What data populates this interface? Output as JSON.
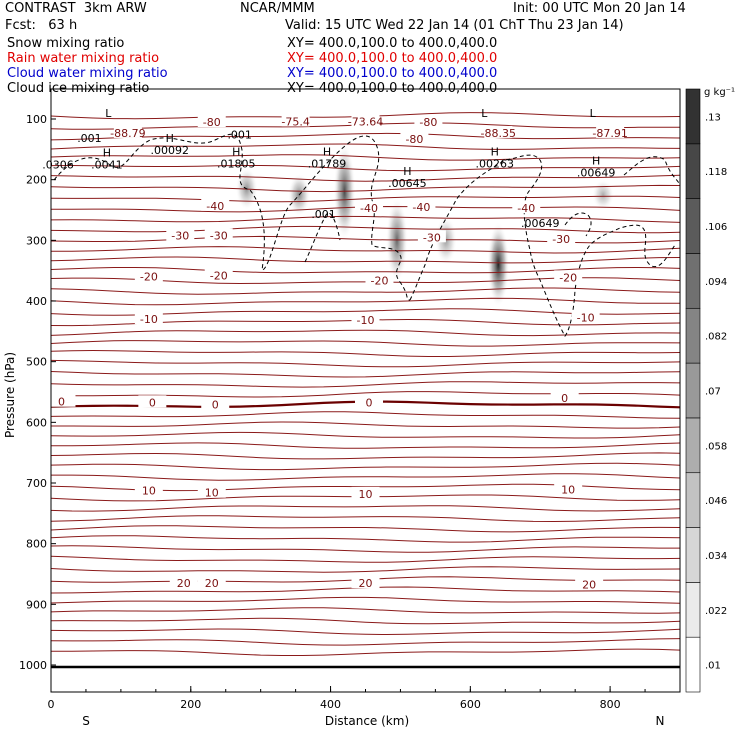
{
  "header": {
    "model": "CONTRAST  3km ARW",
    "org": "NCAR/MMM",
    "init": "Init: 00 UTC Mon 20 Jan 14",
    "fcst": "Fcst:   63 h",
    "valid": "Valid: 15 UTC Wed 22 Jan 14 (01 ChT Thu 23 Jan 14)",
    "fields": [
      {
        "label": "Snow mixing ratio",
        "color": "#000000",
        "xy": "XY= 400.0,100.0 to 400.0,400.0"
      },
      {
        "label": "Rain water mixing ratio",
        "color": "#e00000",
        "xy": "XY= 400.0,100.0 to 400.0,400.0"
      },
      {
        "label": "Cloud water mixing ratio",
        "color": "#0000cc",
        "xy": "XY= 400.0,100.0 to 400.0,400.0"
      },
      {
        "label": "Cloud ice mixing ratio",
        "color": "#000000",
        "xy": "XY= 400.0,100.0 to 400.0,400.0"
      }
    ]
  },
  "colorbar": {
    "unit": "g kg⁻¹",
    "levels": [
      ".01",
      ".022",
      ".034",
      ".046",
      ".058",
      ".07",
      ".082",
      ".094",
      ".106",
      ".118",
      ".13"
    ]
  },
  "chart_data": {
    "type": "cross-section",
    "xlabel": "Distance (km)",
    "ylabel": "Pressure (hPa)",
    "xlim": [
      0,
      900
    ],
    "ylim": [
      1050,
      30
    ],
    "xticks": [
      0,
      200,
      400,
      600,
      800
    ],
    "yticks": [
      100,
      200,
      300,
      400,
      500,
      600,
      700,
      800,
      900,
      1000
    ],
    "endpoints": {
      "left": "S",
      "right": "N"
    },
    "isotherms": [
      {
        "label": "-80",
        "p": 110
      },
      {
        "label": "-40",
        "p": 243
      },
      {
        "label": "-30",
        "p": 290
      },
      {
        "label": "-20",
        "p": 358
      },
      {
        "label": "-10",
        "p": 430
      },
      {
        "label": "0",
        "p": 567
      },
      {
        "label": "10",
        "p": 715
      },
      {
        "label": "20",
        "p": 865
      }
    ],
    "contour_labels": [
      {
        "text": "-80",
        "x": 230,
        "p": 105
      },
      {
        "text": "-80",
        "x": 540,
        "p": 105
      },
      {
        "text": "-80",
        "x": 520,
        "p": 133
      },
      {
        "text": "-75.4",
        "x": 350,
        "p": 104
      },
      {
        "text": "-73.64",
        "x": 450,
        "p": 104
      },
      {
        "text": "-88.79",
        "x": 110,
        "p": 123
      },
      {
        "text": "-88.35",
        "x": 640,
        "p": 123
      },
      {
        "text": "-87.91",
        "x": 800,
        "p": 123
      },
      {
        "text": "-40",
        "x": 235,
        "p": 243
      },
      {
        "text": "-40",
        "x": 455,
        "p": 247
      },
      {
        "text": "-40",
        "x": 530,
        "p": 245
      },
      {
        "text": "-40",
        "x": 680,
        "p": 247
      },
      {
        "text": "-30",
        "x": 185,
        "p": 292
      },
      {
        "text": "-30",
        "x": 240,
        "p": 292
      },
      {
        "text": "-30",
        "x": 545,
        "p": 295
      },
      {
        "text": "-30",
        "x": 730,
        "p": 298
      },
      {
        "text": "-20",
        "x": 140,
        "p": 360
      },
      {
        "text": "-20",
        "x": 240,
        "p": 358
      },
      {
        "text": "-20",
        "x": 470,
        "p": 366
      },
      {
        "text": "-20",
        "x": 740,
        "p": 361
      },
      {
        "text": "-10",
        "x": 140,
        "p": 430
      },
      {
        "text": "-10",
        "x": 450,
        "p": 431
      },
      {
        "text": "-10",
        "x": 765,
        "p": 427
      },
      {
        "text": "0",
        "x": 15,
        "p": 566
      },
      {
        "text": "0",
        "x": 145,
        "p": 567
      },
      {
        "text": "0",
        "x": 235,
        "p": 571
      },
      {
        "text": "0",
        "x": 455,
        "p": 567
      },
      {
        "text": "0",
        "x": 735,
        "p": 560
      },
      {
        "text": "10",
        "x": 140,
        "p": 712
      },
      {
        "text": "10",
        "x": 230,
        "p": 716
      },
      {
        "text": "10",
        "x": 450,
        "p": 718
      },
      {
        "text": "10",
        "x": 740,
        "p": 711
      },
      {
        "text": "20",
        "x": 190,
        "p": 865
      },
      {
        "text": "20",
        "x": 230,
        "p": 865
      },
      {
        "text": "20",
        "x": 450,
        "p": 865
      },
      {
        "text": "20",
        "x": 770,
        "p": 867
      }
    ],
    "extrema": [
      {
        "mark": "L",
        "value": "",
        "x": 82,
        "p": 107
      },
      {
        "mark": "",
        "value": ".001",
        "x": 55,
        "p": 128
      },
      {
        "mark": "H",
        "value": ".00092",
        "x": 170,
        "p": 148
      },
      {
        "mark": "",
        "value": ".001",
        "x": 270,
        "p": 122
      },
      {
        "mark": "H",
        "value": ".0041",
        "x": 80,
        "p": 172
      },
      {
        "mark": "",
        "value": ".0306",
        "x": 10,
        "p": 172
      },
      {
        "mark": "H",
        "value": ".01805",
        "x": 265,
        "p": 170
      },
      {
        "mark": "H",
        "value": ".01789",
        "x": 395,
        "p": 170
      },
      {
        "mark": "H",
        "value": ".00645",
        "x": 510,
        "p": 202
      },
      {
        "mark": "L",
        "value": "",
        "x": 620,
        "p": 107
      },
      {
        "mark": "L",
        "value": "",
        "x": 775,
        "p": 107
      },
      {
        "mark": "H",
        "value": ".00263",
        "x": 635,
        "p": 170
      },
      {
        "mark": "H",
        "value": ".00649",
        "x": 780,
        "p": 185
      },
      {
        "mark": "",
        "value": ".001",
        "x": 390,
        "p": 253
      },
      {
        "mark": "",
        "value": ".00649",
        "x": 700,
        "p": 268
      }
    ],
    "snow_plumes": [
      {
        "x": 280,
        "p_top": 180,
        "p_bot": 250,
        "peak": 0.04
      },
      {
        "x": 355,
        "p_top": 190,
        "p_bot": 260,
        "peak": 0.05
      },
      {
        "x": 420,
        "p_top": 140,
        "p_bot": 300,
        "peak": 0.09
      },
      {
        "x": 495,
        "p_top": 230,
        "p_bot": 370,
        "peak": 0.07
      },
      {
        "x": 565,
        "p_top": 260,
        "p_bot": 340,
        "peak": 0.03
      },
      {
        "x": 640,
        "p_top": 270,
        "p_bot": 410,
        "peak": 0.12
      },
      {
        "x": 790,
        "p_top": 200,
        "p_bot": 250,
        "peak": 0.02
      }
    ]
  }
}
